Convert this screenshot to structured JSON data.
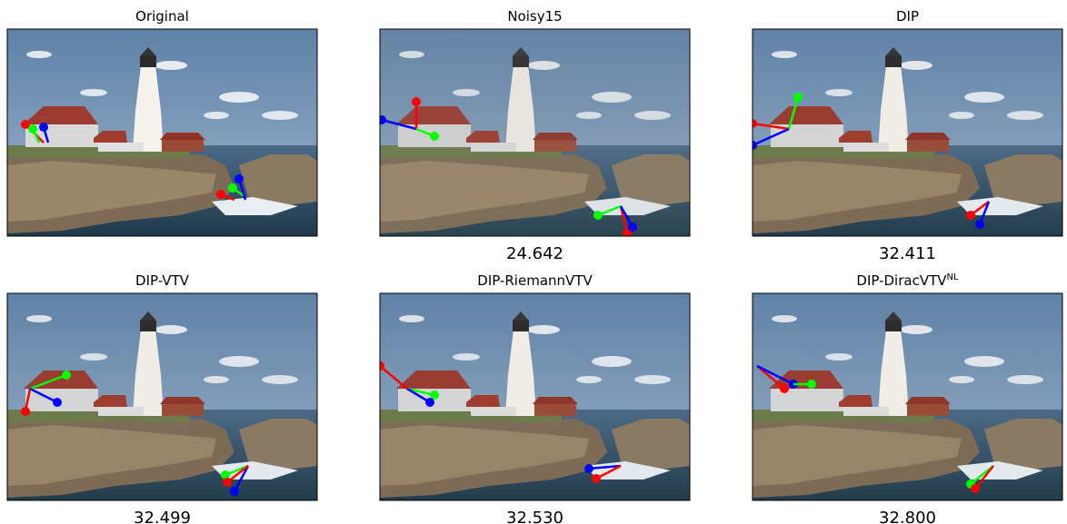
{
  "panels": [
    {
      "title": "Original"
    },
    {
      "title": "Noisy15",
      "score": "24.642"
    },
    {
      "title": "DIP",
      "score": "32.411"
    },
    {
      "title": "DIP-VTV",
      "score": "32.499"
    },
    {
      "title": "DIP-RiemannVTV",
      "score": "32.530"
    },
    {
      "title": "DIP-DiracVTV",
      "title_sup": "NL",
      "score": "32.800"
    }
  ]
}
